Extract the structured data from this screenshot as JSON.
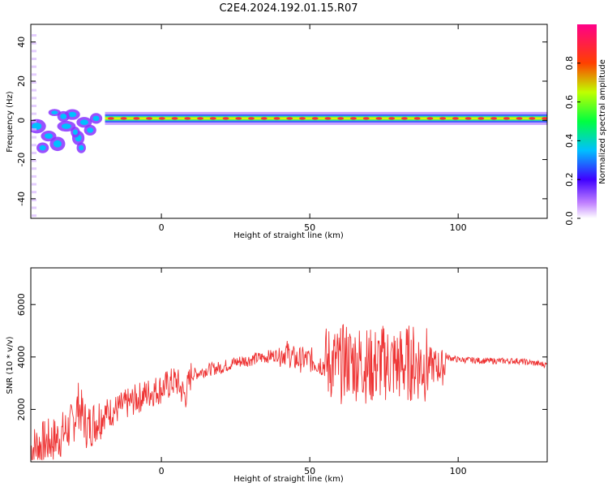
{
  "figure_title": "C2E4.2024.192.01.15.R07",
  "chart_data": [
    {
      "type": "heatmap",
      "xlabel": "Height of straight line (km)",
      "ylabel": "Frequency (Hz)",
      "xlim": [
        -44,
        130
      ],
      "ylim": [
        -50,
        49
      ],
      "x_ticks": [
        0,
        50,
        100
      ],
      "y_ticks": [
        -40,
        -20,
        0,
        20,
        40
      ],
      "grid": false,
      "description_band": {
        "center_frequency": 1,
        "x_start": -19,
        "x_end": 130
      },
      "colorbar": {
        "label": "Normalized spectral amplitude",
        "range": [
          0.0,
          1.0
        ],
        "ticks": [
          0.0,
          0.2,
          0.4,
          0.6,
          0.8
        ],
        "colormap": "rainbow",
        "colors": [
          "#ffffff",
          "#8800ff",
          "#0000ff",
          "#00ffff",
          "#00ff00",
          "#ffff00",
          "#ff0000",
          "#ff0088"
        ]
      }
    },
    {
      "type": "line",
      "xlabel": "Height of straight line (km)",
      "ylabel": "SNR (10 * v/v)",
      "xlim": [
        -44,
        130
      ],
      "ylim": [
        0,
        7400
      ],
      "x_ticks": [
        0,
        50,
        100
      ],
      "y_ticks": [
        2000,
        4000,
        6000
      ],
      "grid": false,
      "series": [
        {
          "color": "#ee3333",
          "x": [
            -44,
            -40,
            -35,
            -30,
            -28,
            -25,
            -20,
            -15,
            -10,
            -5,
            0,
            5,
            8,
            10,
            15,
            20,
            25,
            30,
            35,
            40,
            42,
            45,
            50,
            55,
            58,
            60,
            62,
            65,
            68,
            70,
            75,
            80,
            85,
            90,
            95,
            96,
            100,
            110,
            120,
            130
          ],
          "values": [
            500,
            700,
            900,
            1400,
            2200,
            1300,
            1800,
            2000,
            2300,
            2600,
            2800,
            3100,
            2500,
            3300,
            3500,
            3600,
            3800,
            3900,
            4000,
            4100,
            4200,
            3900,
            3900,
            3700,
            3800,
            3600,
            3900,
            3800,
            3800,
            3600,
            3800,
            3700,
            3800,
            3700,
            3600,
            4000,
            3900,
            3850,
            3850,
            3700
          ]
        }
      ]
    }
  ]
}
